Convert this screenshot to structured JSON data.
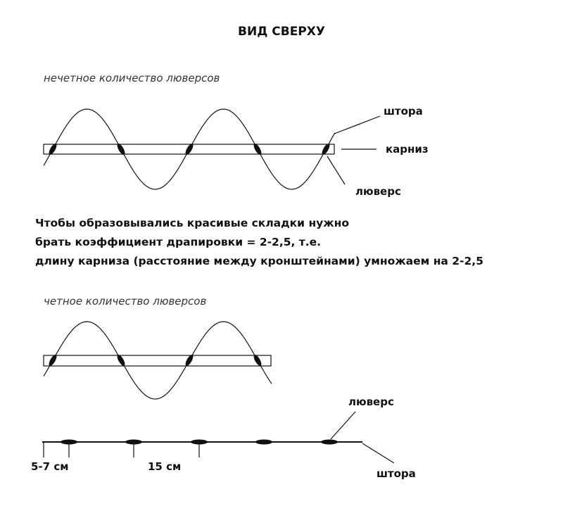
{
  "title": "ВИД СВЕРХУ",
  "odd_diagram": {
    "caption": "нечетное количество люверсов",
    "curtain_label": "штора",
    "rod_label": "карниз",
    "grommet_label": "люверс"
  },
  "note": {
    "lines": [
      "Чтобы образовывались красивые складки нужно",
      "брать коэффициент драпировки = 2-2,5, т.е.",
      "длину карниза (расстояние между кронштейнами) умножаем на 2-2,5"
    ]
  },
  "even_diagram": {
    "caption": "четное количество люверсов"
  },
  "spacing_diagram": {
    "grommet_label": "люверс",
    "edge_distance": "5-7 см",
    "grommet_distance": "15 см",
    "curtain_label": "штора"
  }
}
